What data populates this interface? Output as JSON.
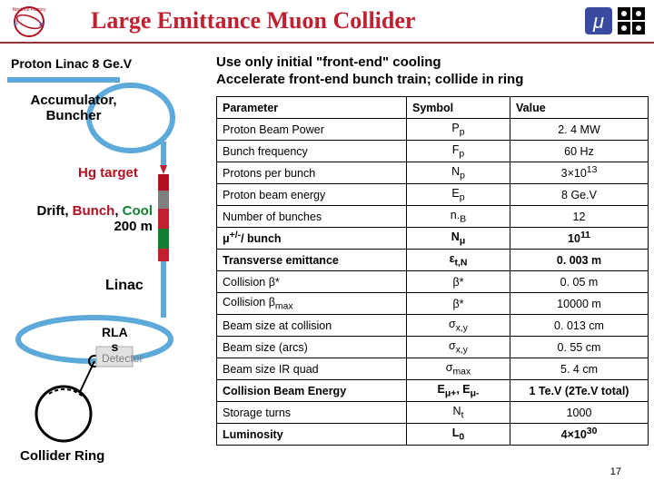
{
  "title": {
    "text": "Large Emittance Muon Collider",
    "color": "#c02030"
  },
  "subtitle_line1": "Use only initial \"front-end\" cooling",
  "subtitle_line2": "Accelerate front-end bunch train; collide in ring",
  "page_number": "17",
  "left_labels": {
    "proton_linac": {
      "text": "Proton Linac 8 Ge.V",
      "color": "#000000",
      "fontsize": 14
    },
    "accumulator1": {
      "text": "Accumulator,",
      "color": "#000000",
      "fontsize": 15
    },
    "accumulator2": {
      "text": "Buncher",
      "color": "#000000",
      "fontsize": 15
    },
    "hg_target": {
      "text": "Hg target",
      "color": "#b01020",
      "fontsize": 15
    },
    "drift1": {
      "text_plain": "Drift",
      "text_bunch": "Bunch",
      "text_cool": "Cool",
      "color_drift": "#000",
      "color_bunch": "#b01020",
      "color_cool": "#108030",
      "fontsize": 15
    },
    "drift2": {
      "text": "200 m",
      "color": "#000000",
      "fontsize": 15
    },
    "linac": {
      "text": "Linac",
      "color": "#000000",
      "fontsize": 16
    },
    "rla": {
      "text": "RLA",
      "color": "#000000",
      "fontsize": 14
    },
    "rla2": {
      "text": "s",
      "color": "#000000",
      "fontsize": 14
    },
    "detector": {
      "text": "Detector",
      "color": "#808080",
      "fontsize": 12
    },
    "collider": {
      "text": "Collider Ring",
      "color": "#000000",
      "fontsize": 15
    }
  },
  "diagram": {
    "linac_line_color": "#5da9d9",
    "accum_ring_color": "#5da9d9",
    "target_pipe_color": "#5da9d9",
    "drift_seg_colors": [
      "#808080",
      "#c02030",
      "#108030",
      "#c02030"
    ],
    "rla_color": "#5da9d9",
    "collider_ring_color": "#000000",
    "detector_box_color": "#e0e0e0"
  },
  "table": {
    "headers": [
      "Parameter",
      "Symbol",
      "Value"
    ],
    "rows": [
      {
        "param": "Proton Beam Power",
        "symbol_html": "P<sub>p</sub>",
        "value": "2. 4 MW",
        "bold": false
      },
      {
        "param": "Bunch frequency",
        "symbol_html": "F<sub>p</sub>",
        "value": "60 Hz",
        "bold": false
      },
      {
        "param": "Protons per bunch",
        "symbol_html": "N<sub>p</sub>",
        "value_html": "3×10<sup>13</sup>",
        "bold": false
      },
      {
        "param": "Proton beam energy",
        "symbol_html": "E<sub>p</sub>",
        "value": "8 Ge.V",
        "bold": false
      },
      {
        "param": "Number of bunches",
        "symbol_html": "n.<sub>B</sub>",
        "value": "12",
        "bold": false
      },
      {
        "param_html": "μ<sup>+/-</sup>/ bunch",
        "symbol_html": "N<sub>μ</sub>",
        "value_html": "10<sup>11</sup>",
        "bold": true
      },
      {
        "param": "Transverse emittance",
        "symbol_html": "ε<sub>t,N</sub>",
        "value": "0. 003 m",
        "bold": true
      },
      {
        "param_html": "Collision β*",
        "symbol_html": "β*",
        "value": "0. 05 m",
        "bold": false
      },
      {
        "param_html": "Collision β<sub>max</sub>",
        "symbol_html": "β*",
        "value": "10000 m",
        "bold": false
      },
      {
        "param": "Beam size at collision",
        "symbol_html": "σ<sub>x,y</sub>",
        "value": "0. 013 cm",
        "bold": false
      },
      {
        "param": "Beam size (arcs)",
        "symbol_html": "σ<sub>x,y</sub>",
        "value": "0. 55 cm",
        "bold": false
      },
      {
        "param": "Beam size IR quad",
        "symbol_html": "σ<sub>max</sub>",
        "value": "5. 4 cm",
        "bold": false
      },
      {
        "param": "Collision Beam Energy",
        "symbol_html": "E<sub>μ+</sub>, E<sub>μ-</sub>",
        "value": "1 Te.V (2Te.V total)",
        "bold": true
      },
      {
        "param": "Storage turns",
        "symbol_html": "N<sub>t</sub>",
        "value": "1000",
        "bold": false
      },
      {
        "param": "Luminosity",
        "symbol_html": "L<sub>0</sub>",
        "value_html": "4×10<sup>30</sup>",
        "bold": true
      }
    ],
    "col_widths": [
      "44%",
      "24%",
      "32%"
    ]
  }
}
